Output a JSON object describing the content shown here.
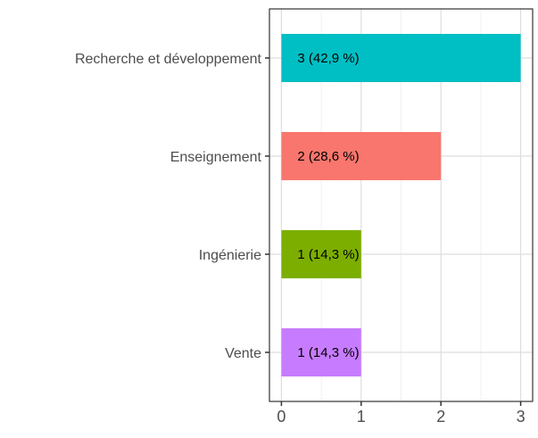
{
  "chart_data": {
    "type": "bar",
    "orientation": "horizontal",
    "categories": [
      "Recherche et développement",
      "Enseignement",
      "Ingénierie",
      "Vente"
    ],
    "values": [
      3,
      2,
      1,
      1
    ],
    "data_labels": [
      "3 (42,9 %)",
      "2 (28,6 %)",
      "1 (14,3 %)",
      "1 (14,3 %)"
    ],
    "colors": [
      "#00BFC4",
      "#F8766D",
      "#7CAE00",
      "#C77CFF"
    ],
    "x_ticks": [
      0,
      1,
      2,
      3
    ],
    "x_tick_labels": [
      "0",
      "1",
      "2",
      "3"
    ],
    "xlim": [
      -0.15,
      3.15
    ],
    "grid": true,
    "title": "",
    "xlabel": "",
    "ylabel": ""
  }
}
